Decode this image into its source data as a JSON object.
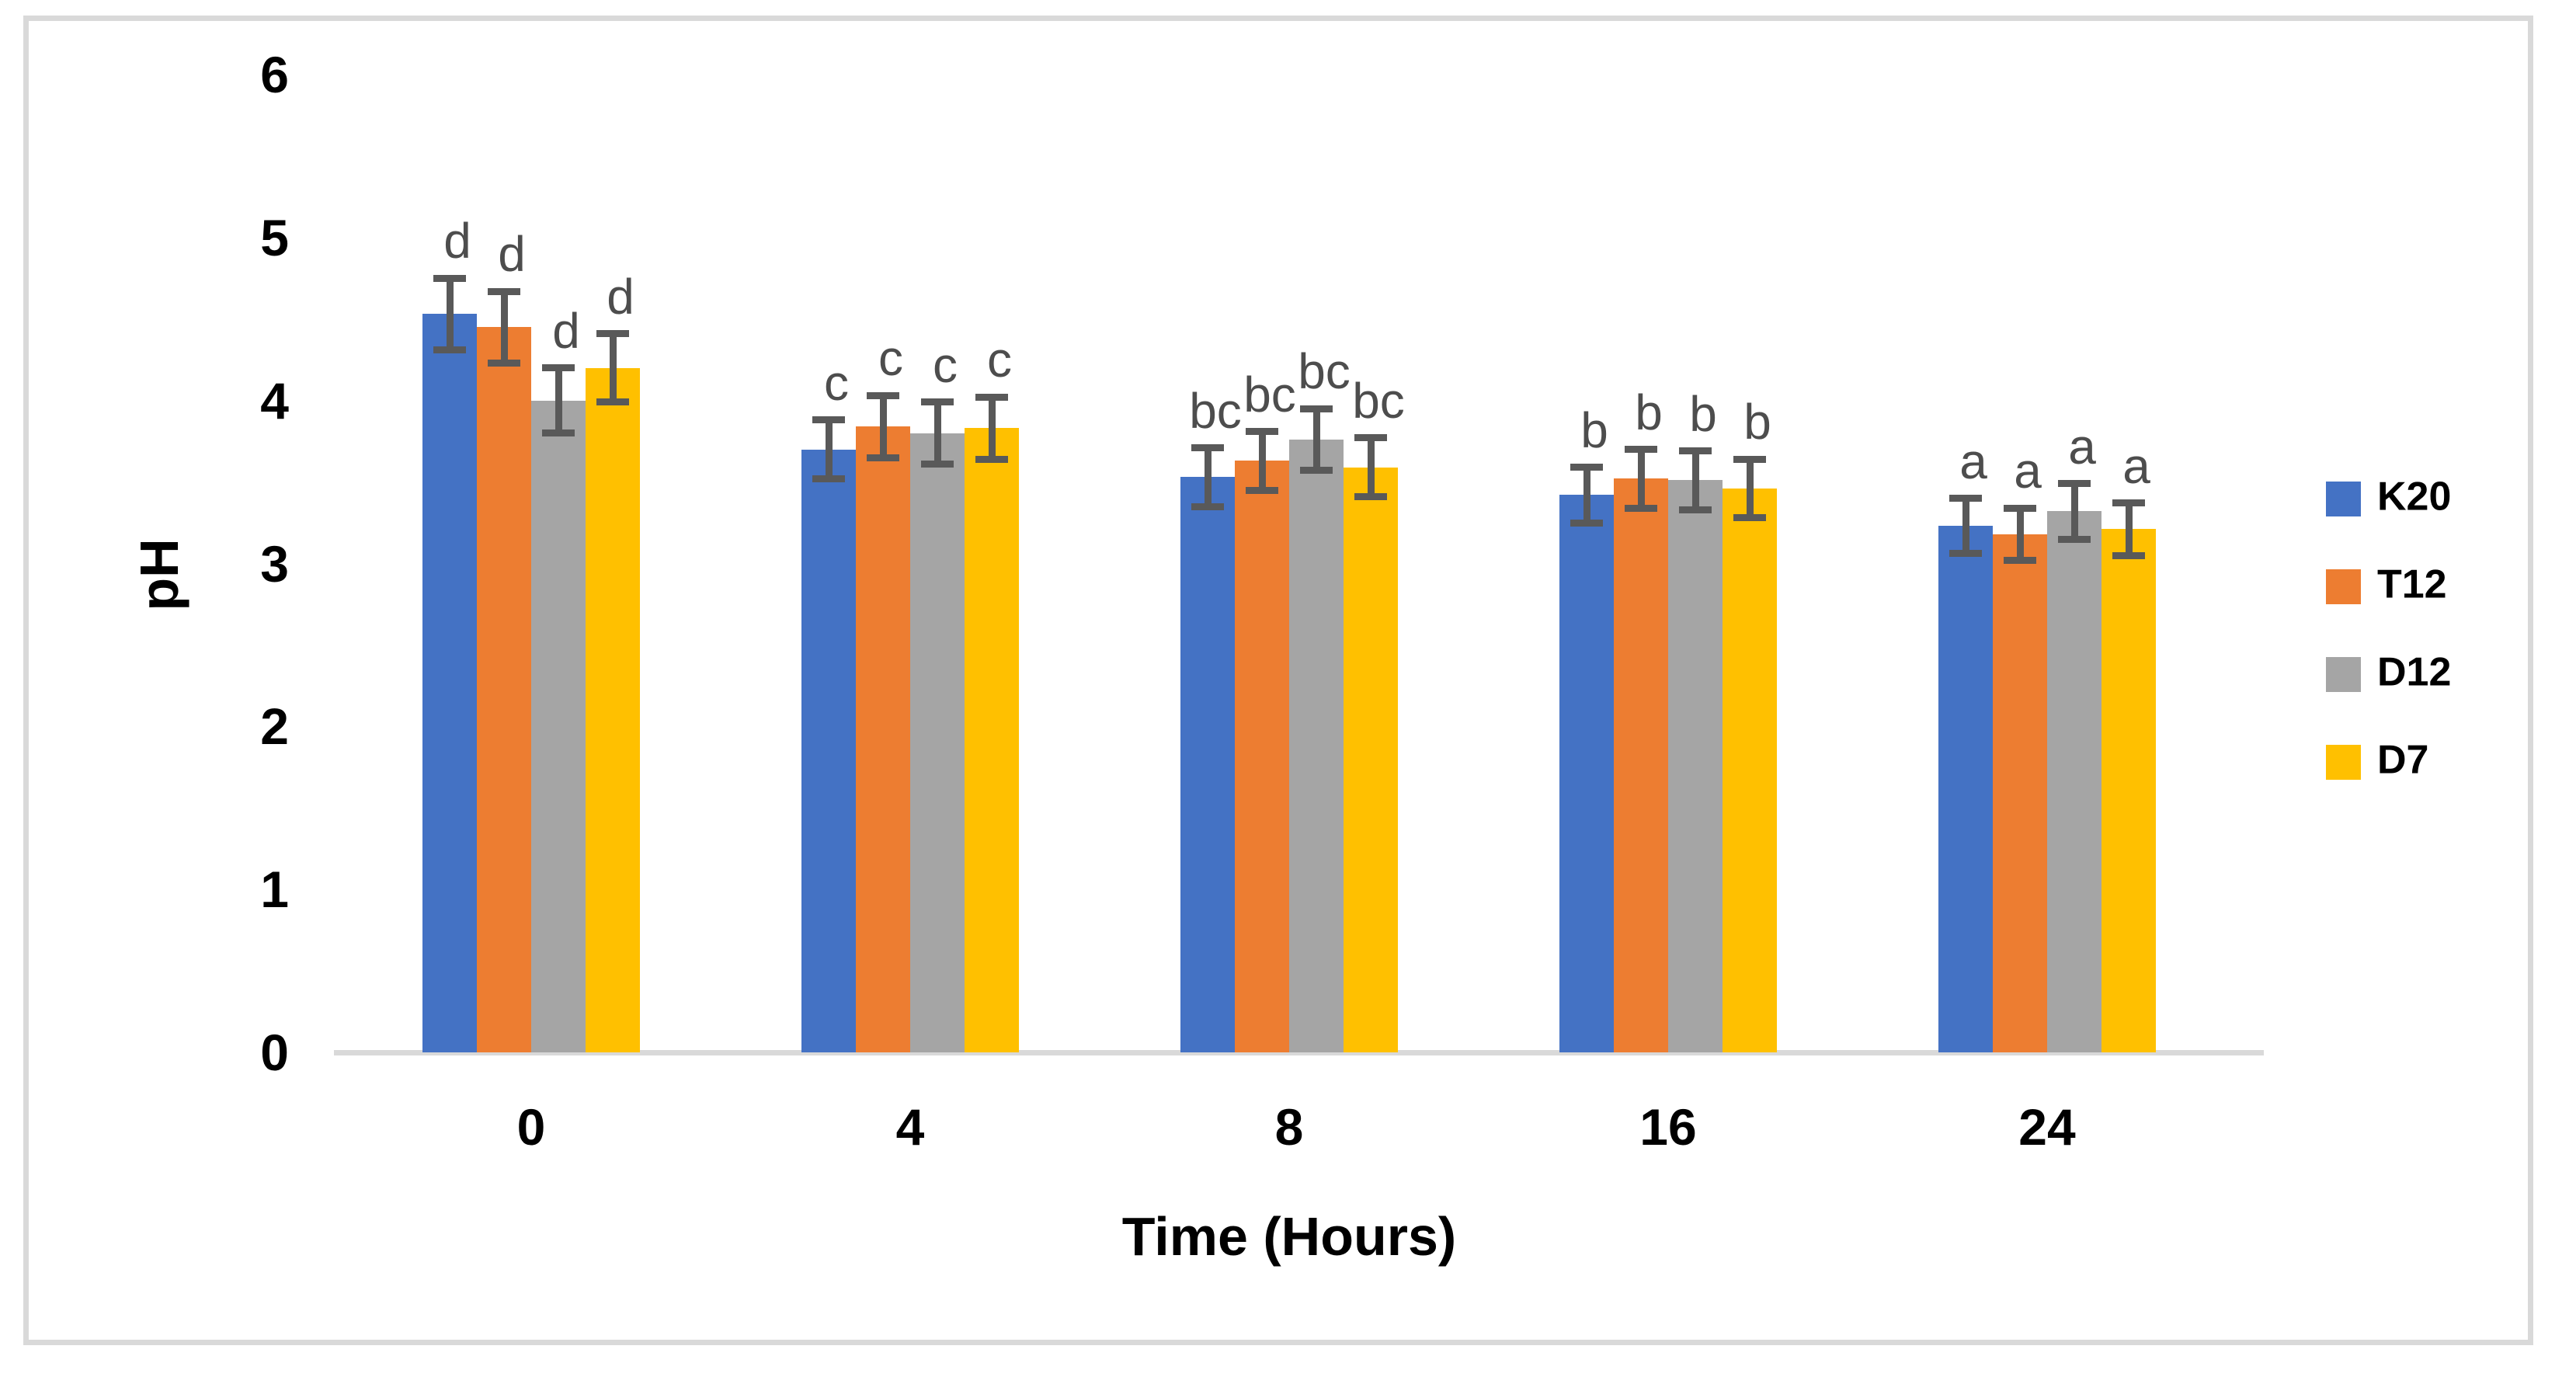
{
  "figure": {
    "y_axis_title": "pH",
    "x_axis_title": "Time (Hours)",
    "y_tick_labels": [
      "0",
      "1",
      "2",
      "3",
      "4",
      "5",
      "6"
    ],
    "x_tick_labels": [
      "0",
      "4",
      "8",
      "16",
      "24"
    ],
    "border_color": "#d9d9d9",
    "axis_line_color": "#d9d9d9",
    "error_bar_color": "#595959",
    "letter_color": "#4d4d4d"
  },
  "chart_data": {
    "type": "bar",
    "title": "",
    "xlabel": "Time (Hours)",
    "ylabel": "pH",
    "ylim": [
      0,
      6
    ],
    "y_tick_step": 1,
    "grid": false,
    "legend_position": "right",
    "categories": [
      0,
      4,
      8,
      16,
      24
    ],
    "significance_letters_by_category": [
      "d",
      "c",
      "bc",
      "b",
      "a"
    ],
    "series": [
      {
        "name": "K20",
        "color": "#4472C4",
        "values": [
          4.53,
          3.7,
          3.53,
          3.42,
          3.23
        ],
        "errors": [
          0.22,
          0.18,
          0.18,
          0.17,
          0.17
        ]
      },
      {
        "name": "T12",
        "color": "#ED7D31",
        "values": [
          4.45,
          3.84,
          3.63,
          3.52,
          3.18
        ],
        "errors": [
          0.22,
          0.19,
          0.18,
          0.18,
          0.16
        ]
      },
      {
        "name": "D12",
        "color": "#A5A5A5",
        "values": [
          4.0,
          3.8,
          3.76,
          3.51,
          3.32
        ],
        "errors": [
          0.2,
          0.19,
          0.19,
          0.18,
          0.17
        ]
      },
      {
        "name": "D7",
        "color": "#FFC000",
        "values": [
          4.2,
          3.83,
          3.59,
          3.46,
          3.21
        ],
        "errors": [
          0.21,
          0.19,
          0.18,
          0.18,
          0.16
        ]
      }
    ]
  }
}
